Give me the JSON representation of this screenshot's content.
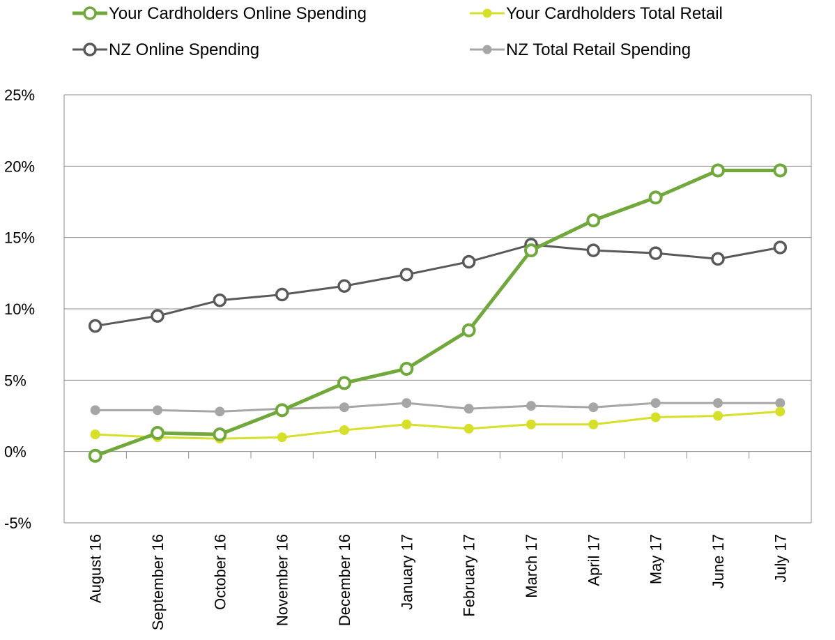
{
  "chart_data": {
    "type": "line",
    "title": "",
    "xlabel": "",
    "ylabel": "",
    "categories": [
      "August 16",
      "September 16",
      "October 16",
      "November 16",
      "December 16",
      "January 17",
      "February 17",
      "March 17",
      "April 17",
      "May 17",
      "June 17",
      "July 17"
    ],
    "ylim": [
      -5,
      25
    ],
    "yticks": [
      -5,
      0,
      5,
      10,
      15,
      20,
      25
    ],
    "ytick_labels": [
      "-5%",
      "0%",
      "5%",
      "10%",
      "15%",
      "20%",
      "25%"
    ],
    "grid": true,
    "legend_position": "top",
    "series": [
      {
        "name": "Your Cardholders Online Spending",
        "color": "#70a83b",
        "marker": "open-circle",
        "values": [
          -0.3,
          1.3,
          1.2,
          2.9,
          4.8,
          5.8,
          8.5,
          14.1,
          16.2,
          17.8,
          19.7,
          19.7
        ]
      },
      {
        "name": "Your Cardholders Total Retail",
        "color": "#d6e02a",
        "marker": "filled-circle",
        "values": [
          1.2,
          1.0,
          0.9,
          1.0,
          1.5,
          1.9,
          1.6,
          1.9,
          1.9,
          2.4,
          2.5,
          2.8
        ]
      },
      {
        "name": "NZ Online Spending",
        "color": "#595959",
        "marker": "open-circle",
        "values": [
          8.8,
          9.5,
          10.6,
          11.0,
          11.6,
          12.4,
          13.3,
          14.5,
          14.1,
          13.9,
          13.5,
          14.3
        ]
      },
      {
        "name": "NZ Total Retail Spending",
        "color": "#a6a6a6",
        "marker": "filled-circle",
        "values": [
          2.9,
          2.9,
          2.8,
          3.0,
          3.1,
          3.4,
          3.0,
          3.2,
          3.1,
          3.4,
          3.4,
          3.4
        ]
      }
    ]
  }
}
